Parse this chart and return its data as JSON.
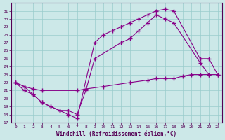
{
  "bg_color": "#cce8e8",
  "line_color": "#880088",
  "grid_color": "#99cccc",
  "xlabel": "Windchill (Refroidissement éolien,°C)",
  "xlim": [
    -0.5,
    23.5
  ],
  "ylim": [
    17,
    32
  ],
  "xticks": [
    0,
    1,
    2,
    3,
    4,
    5,
    6,
    7,
    8,
    9,
    10,
    11,
    12,
    13,
    14,
    15,
    16,
    17,
    18,
    19,
    20,
    21,
    22,
    23
  ],
  "yticks": [
    17,
    18,
    19,
    20,
    21,
    22,
    23,
    24,
    25,
    26,
    27,
    28,
    29,
    30,
    31
  ],
  "curve1_x": [
    0,
    1,
    2,
    3,
    4,
    5,
    6,
    7,
    9,
    10,
    11,
    12,
    13,
    14,
    15,
    16,
    17,
    18,
    21,
    22,
    23
  ],
  "curve1_y": [
    22,
    21,
    20.5,
    19.5,
    19.0,
    18.5,
    18.0,
    17.5,
    27.0,
    28.0,
    28.5,
    29.0,
    29.5,
    30.0,
    30.5,
    31.0,
    31.2,
    31.0,
    25.0,
    25.0,
    23.0
  ],
  "curve2_x": [
    0,
    1,
    2,
    3,
    4,
    5,
    6,
    7,
    8,
    9,
    12,
    13,
    14,
    15,
    16,
    17,
    18,
    21,
    22
  ],
  "curve2_y": [
    22,
    21.5,
    20.5,
    19.5,
    19.0,
    18.5,
    18.5,
    18.0,
    21.0,
    25.0,
    27.0,
    27.5,
    28.5,
    29.5,
    30.5,
    30.0,
    29.5,
    24.5,
    23.0
  ],
  "curve3_x": [
    0,
    1,
    2,
    3,
    7,
    8,
    10,
    13,
    15,
    16,
    17,
    18,
    19,
    20,
    21,
    22,
    23
  ],
  "curve3_y": [
    22,
    21.5,
    21.2,
    21.0,
    21.0,
    21.2,
    21.5,
    22.0,
    22.3,
    22.5,
    22.5,
    22.5,
    22.8,
    23.0,
    23.0,
    23.0,
    23.0
  ]
}
